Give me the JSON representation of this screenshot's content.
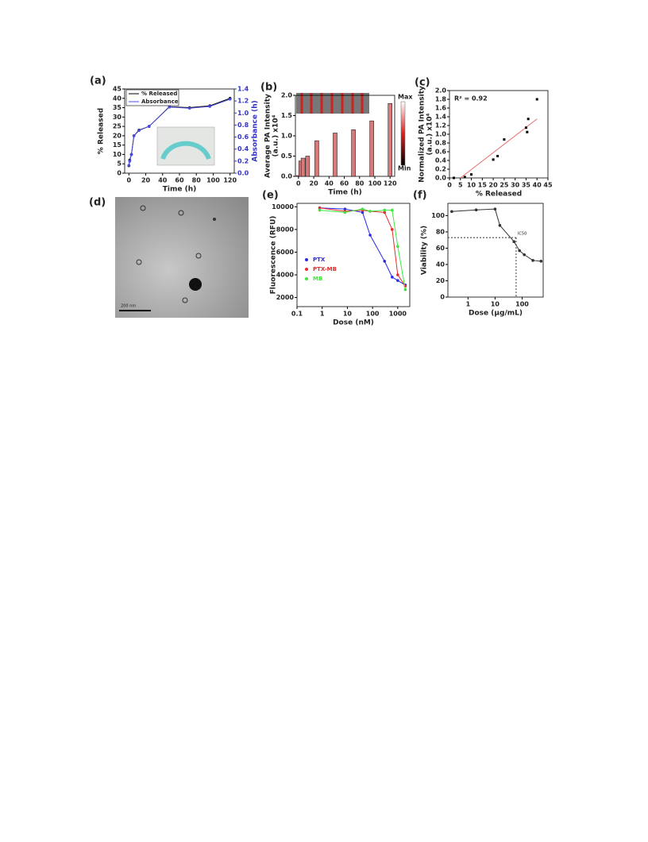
{
  "chart_data": [
    {
      "type": "line",
      "label": "(a)",
      "xlabel": "Time (h)",
      "ylabel": [
        "% Released"
      ],
      "y2label": "Absorbance (h)",
      "x": [
        0,
        1,
        3,
        6,
        12,
        24,
        48,
        72,
        96,
        120
      ],
      "xlim": [
        -5,
        125
      ],
      "xticks": [
        0,
        20,
        40,
        60,
        80,
        100,
        120
      ],
      "ylim": [
        0,
        45
      ],
      "yticks": [
        0,
        5,
        10,
        15,
        20,
        25,
        30,
        35,
        40,
        45
      ],
      "y2lim": [
        0,
        1.4
      ],
      "y2ticks": [
        {
          "value": 0,
          "label": "0.0"
        },
        0.2,
        0.4,
        0.6,
        0.8,
        {
          "value": 1,
          "label": "1.0"
        },
        1.2,
        1.4
      ],
      "legend": "upper-left",
      "series": [
        {
          "name": "% Released",
          "color": "#000000",
          "values": [
            4,
            7,
            10,
            20,
            23,
            25,
            35.5,
            35,
            36,
            40
          ]
        },
        {
          "name": "Absorbance",
          "color": "#4a4ae0",
          "axis": "y2",
          "values": [
            0.13,
            0.2,
            0.31,
            0.62,
            0.71,
            0.78,
            1.1,
            1.08,
            1.11,
            1.23
          ]
        }
      ]
    },
    {
      "type": "bar",
      "label": "(b)",
      "xlabel": "Time (h)",
      "ylabel": [
        "Average PA Intensity",
        "(a.u.) x10⁴"
      ],
      "colorbar_labels": [
        "Max",
        "Min"
      ],
      "color": "#d97a7a",
      "x": [
        0,
        3,
        6,
        12,
        24,
        48,
        72,
        96,
        120
      ],
      "values": [
        0.02,
        0.38,
        0.45,
        0.5,
        0.88,
        1.07,
        1.15,
        1.37,
        1.8
      ],
      "xlim": [
        -4,
        126
      ],
      "xticks": [
        0,
        20,
        40,
        60,
        80,
        100,
        120
      ],
      "ylim": [
        0,
        2
      ],
      "yticks": [
        {
          "value": 0,
          "label": "0.0"
        },
        0.5,
        {
          "value": 1,
          "label": "1.0"
        },
        1.5,
        {
          "value": 2,
          "label": "2.0"
        }
      ]
    },
    {
      "type": "scatter",
      "label": "(c)",
      "xlabel": "% Released",
      "ylabel": [
        "Normalized PA Intensity",
        "(a.u.) x10⁴"
      ],
      "annotation": "R² = 0.92",
      "color": "#000000",
      "fit_color": "#e86a6a",
      "x": [
        2,
        7,
        10,
        20,
        22,
        25,
        35,
        35.5,
        36,
        40
      ],
      "values": [
        0,
        0.02,
        0.08,
        0.42,
        0.5,
        0.88,
        1.15,
        1.05,
        1.35,
        1.8
      ],
      "fit": {
        "x": [
          5,
          40
        ],
        "y": [
          0,
          1.35
        ]
      },
      "xlim": [
        0,
        45
      ],
      "xticks": [
        0,
        5,
        10,
        15,
        20,
        25,
        30,
        35,
        40,
        45
      ],
      "ylim": [
        0,
        2
      ],
      "yticks": [
        {
          "value": 0,
          "label": "0.0"
        },
        0.2,
        0.4,
        0.6,
        0.8,
        {
          "value": 1,
          "label": "1.0"
        },
        1.2,
        1.4,
        1.6,
        1.8,
        {
          "value": 2,
          "label": "2.0"
        }
      ]
    },
    {
      "type": "line",
      "label": "(e)",
      "xlabel": "Dose (nM)",
      "ylabel": [
        "Fluorescence (RFU)"
      ],
      "xlog": true,
      "legend": "center-left",
      "x": [
        0.8,
        8,
        40,
        80,
        300,
        600,
        1000,
        2000
      ],
      "xlim": [
        0.1,
        3000
      ],
      "xticks": [
        0.1,
        1,
        10,
        100,
        1000
      ],
      "ylim": [
        1200,
        10300
      ],
      "yticks": [
        2000,
        4000,
        6000,
        8000,
        10000
      ],
      "series": [
        {
          "name": "PTX",
          "color": "#2a2ae8",
          "values": [
            9900,
            9800,
            9500,
            7500,
            5200,
            3800,
            3500,
            3100
          ]
        },
        {
          "name": "PTX-MB",
          "color": "#e82a2a",
          "values": [
            9900,
            9600,
            9700,
            9600,
            9500,
            8000,
            4000,
            3000
          ]
        },
        {
          "name": "MB",
          "color": "#3ae83a",
          "values": [
            9700,
            9500,
            9800,
            9600,
            9700,
            9700,
            6500,
            2700
          ]
        }
      ]
    },
    {
      "type": "line",
      "label": "(f)",
      "xlabel": "Dose (µg/mL)",
      "ylabel": [
        "Viability (%)"
      ],
      "xlog": true,
      "x": [
        0.25,
        2,
        10,
        15,
        50,
        80,
        120,
        250,
        500
      ],
      "xlim": [
        0.18,
        600
      ],
      "xticks": [
        1,
        10,
        100
      ],
      "ylim": [
        0,
        115
      ],
      "yticks": [
        0,
        20,
        40,
        60,
        80,
        100
      ],
      "ic50": {
        "x": 60,
        "y": 73,
        "label": "IC50"
      },
      "series": [
        {
          "name": "Viability",
          "color": "#333333",
          "values": [
            105,
            107,
            108,
            88,
            68,
            57,
            52,
            45,
            44
          ]
        }
      ]
    }
  ],
  "image_panel": {
    "label": "(d)",
    "scale_bar": "200 nm"
  }
}
